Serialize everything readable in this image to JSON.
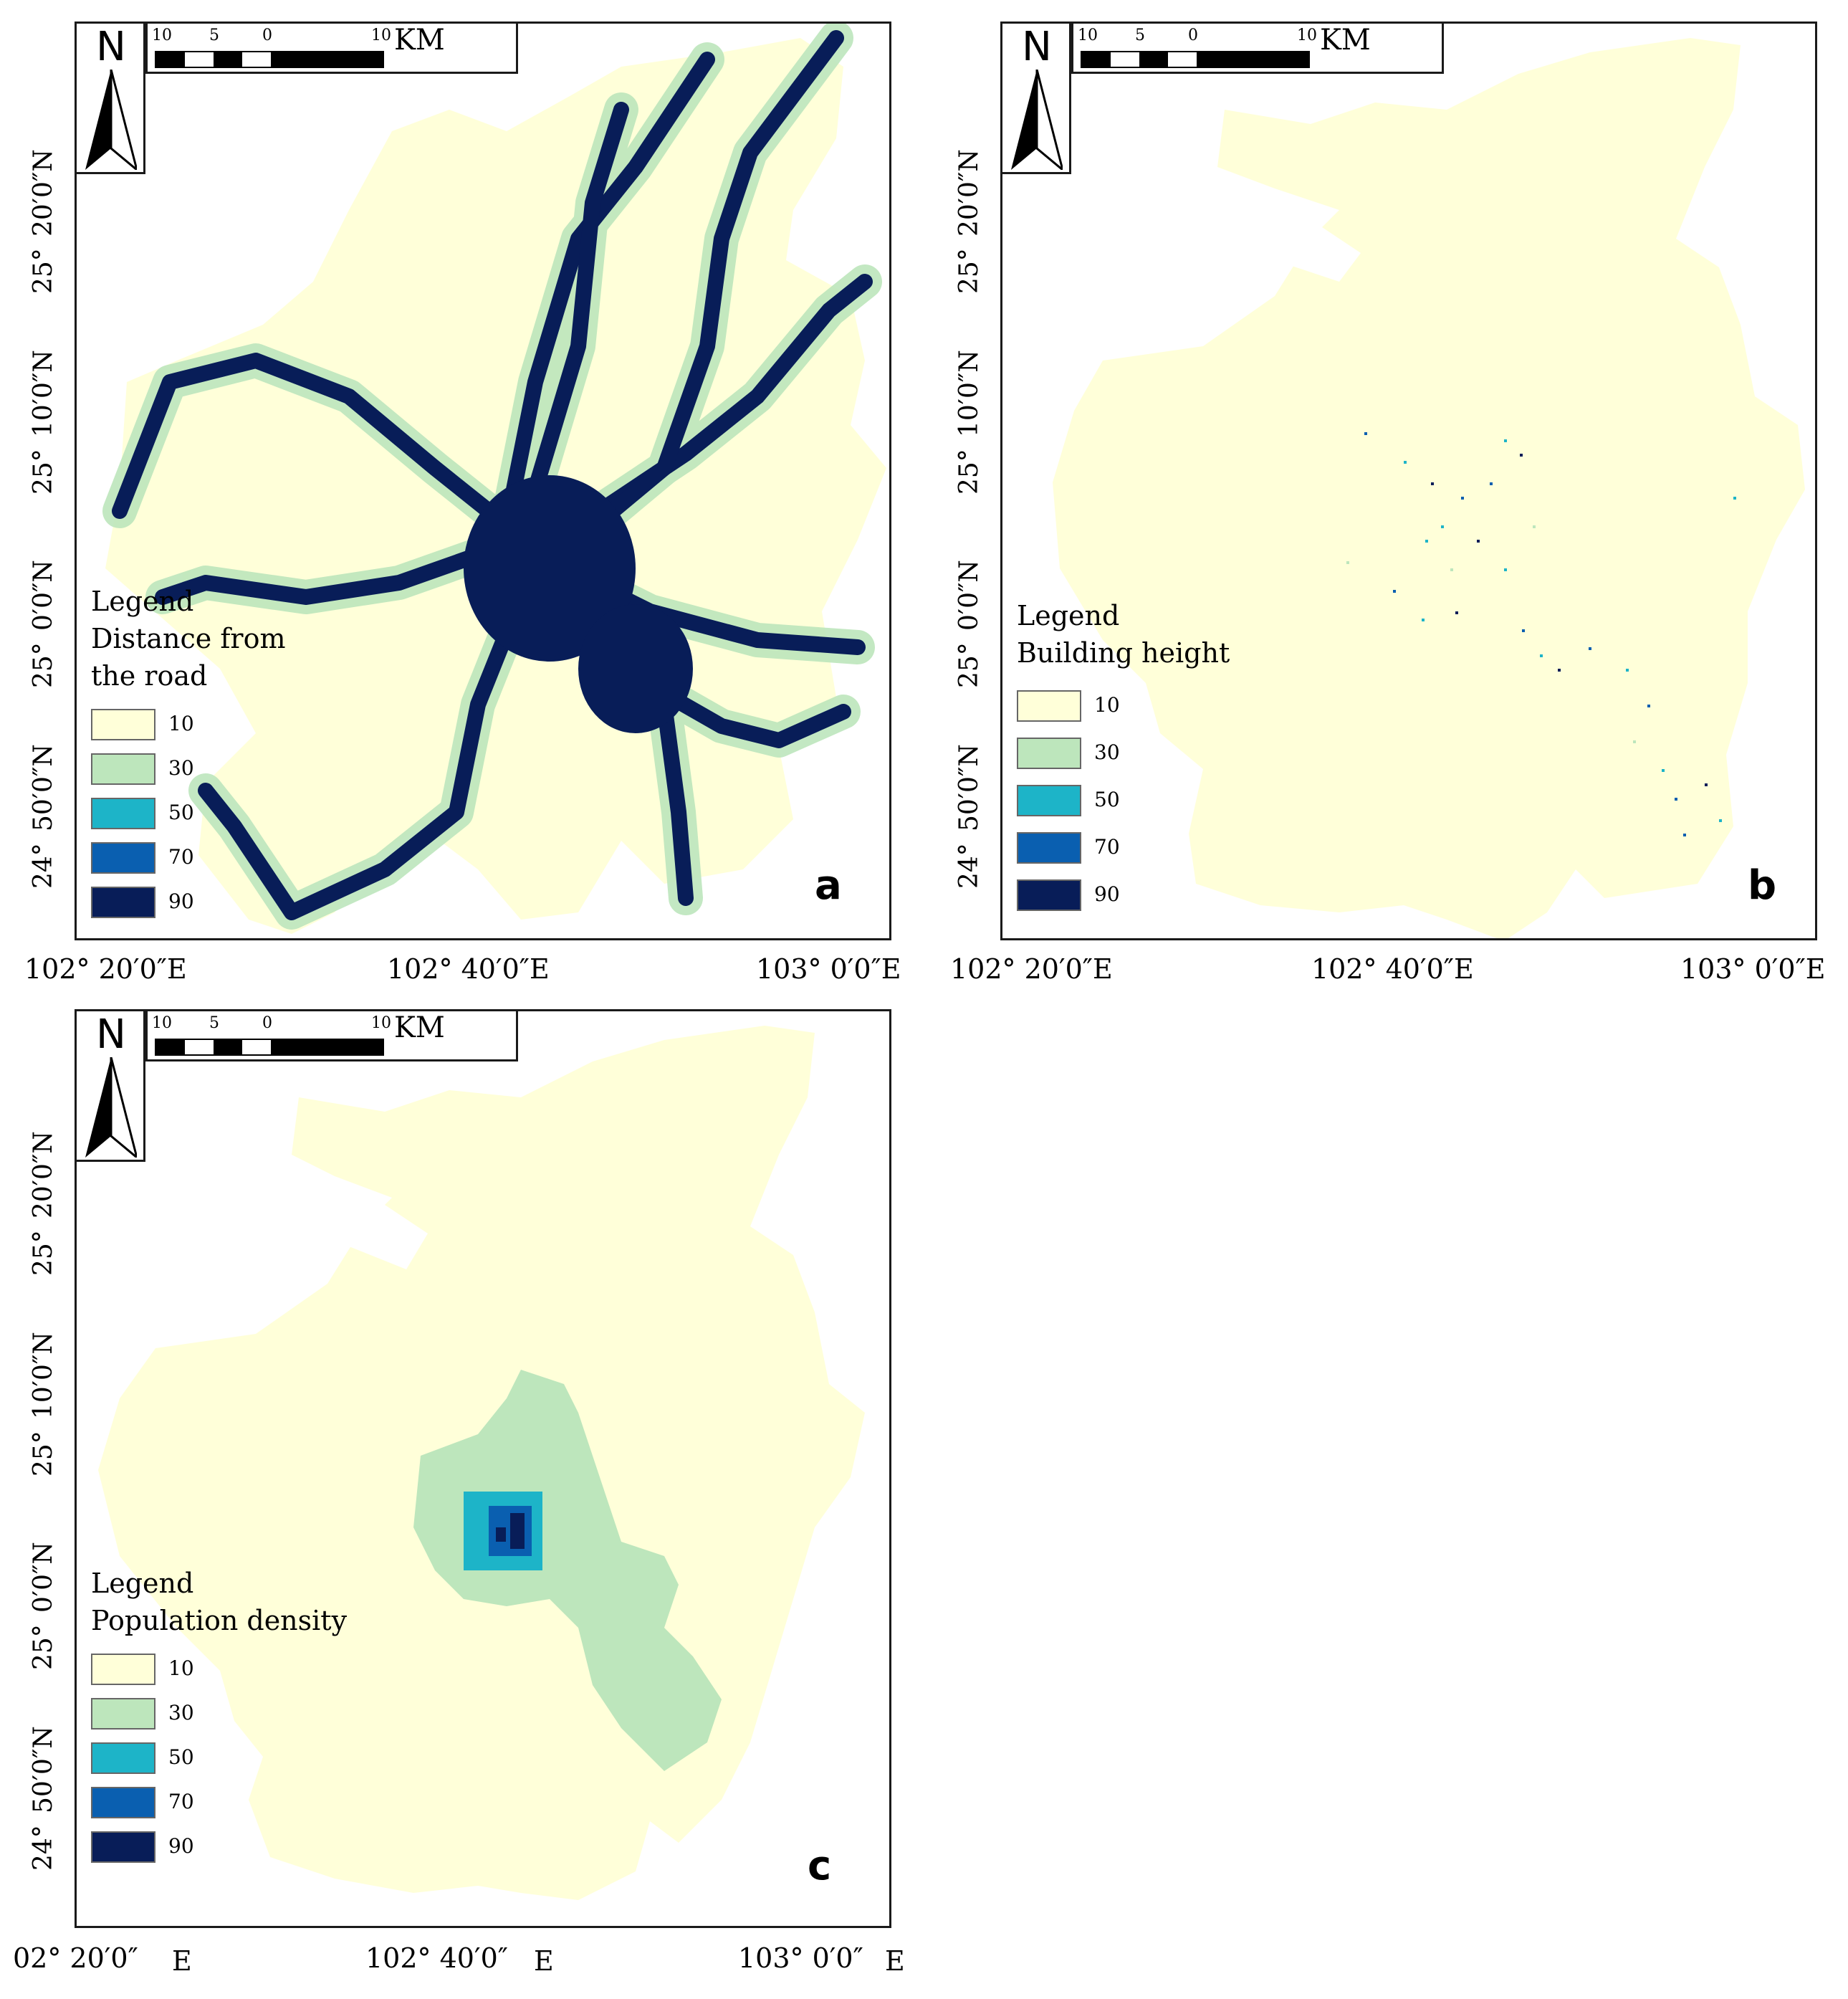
{
  "panels": {
    "a": {
      "letter": "a",
      "legend_title": "Legend\nDistance from\nthe road",
      "legend": [
        "10",
        "30",
        "50",
        "70",
        "90"
      ],
      "lat_labels": [
        "20′0″N",
        "25°",
        "10′0″N",
        "25°",
        "0′0″N",
        "25°",
        "50′0″N",
        "24°"
      ],
      "lon_labels": [
        "102° 20′0″E",
        "102° 40′0″E",
        "103° 0′0″E"
      ]
    },
    "b": {
      "letter": "b",
      "legend_title": "Legend\nBuilding height",
      "legend": [
        "10",
        "30",
        "50",
        "70",
        "90"
      ],
      "lat_labels": [
        "20′0″N",
        "25°",
        "10′0″N",
        "25°",
        "0′0″N",
        "25°",
        "50′0″N",
        "24°"
      ],
      "lon_labels": [
        "102° 20′0″E",
        "102° 40′0″E",
        "103° 0′0″E"
      ]
    },
    "c": {
      "letter": "c",
      "legend_title": "Legend\nPopulation density",
      "legend": [
        "10",
        "30",
        "50",
        "70",
        "90"
      ],
      "lat_labels": [
        "20′0″N",
        "25°",
        "10′0″N",
        "25°",
        "0′0″N",
        "25°",
        "50′0″N",
        "24°"
      ],
      "lon_labels": [
        "02° 20′0″",
        "E",
        "102° 40′0″",
        "E",
        "103° 0′0″",
        "E"
      ]
    }
  },
  "north_arrow": {
    "letter": "N"
  },
  "scale_bar": {
    "ticks": [
      "10",
      "5",
      "0",
      "10"
    ],
    "unit": "KM"
  },
  "colors": {
    "c10": "#ffffd9",
    "c30": "#bde6bc",
    "c50": "#1db4c8",
    "c70": "#0a5fb0",
    "c90": "#081d58"
  }
}
